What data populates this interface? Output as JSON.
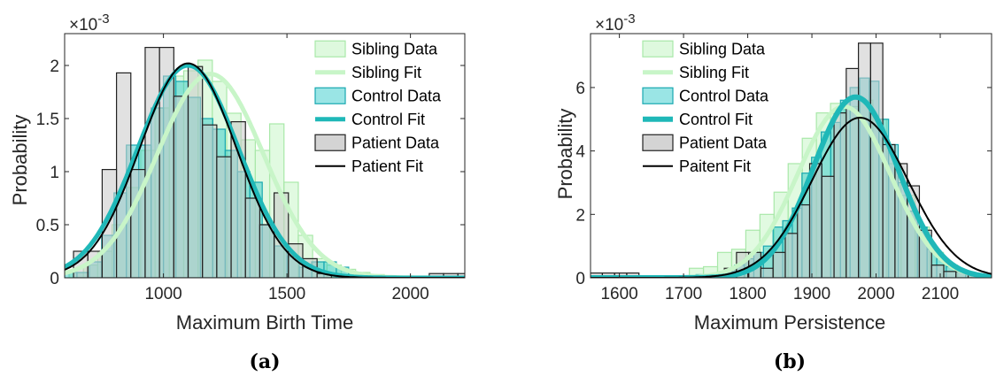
{
  "chart_data": [
    {
      "type": "bar",
      "panel_label": "(a)",
      "xlabel": "Maximum Birth Time",
      "ylabel": "Probability",
      "y_exponent_label": "×10",
      "y_exponent_power": "-3",
      "xlim": [
        600,
        2220
      ],
      "ylim": [
        0,
        2.3
      ],
      "xticks": [
        1000,
        1500,
        2000
      ],
      "yticks": [
        0,
        0.5,
        1,
        1.5,
        2
      ],
      "ytick_labels": [
        "0",
        "0.5",
        "1",
        "1.5",
        "2"
      ],
      "grid": false,
      "legend_position": "top-right",
      "legend": [
        "Sibling Data",
        "Sibling Fit",
        "Control Data",
        "Control Fit",
        "Patient Data",
        "Patient Fit"
      ],
      "histograms": [
        {
          "name": "Sibling Data",
          "color": "#c8f5c8",
          "edge": "#a9e8a9",
          "bin_width": 58,
          "centers": [
            647,
            705,
            763,
            821,
            879,
            937,
            995,
            1053,
            1111,
            1169,
            1227,
            1285,
            1343,
            1401,
            1459,
            1517,
            1575,
            1633,
            1691,
            1749,
            1807,
            1865,
            1923
          ],
          "values": [
            0.05,
            0.12,
            0.25,
            0.5,
            0.85,
            1.2,
            1.6,
            1.9,
            1.95,
            2.05,
            1.85,
            1.55,
            1.3,
            1.2,
            1.45,
            0.9,
            0.4,
            0.18,
            0.12,
            0.08,
            0.05,
            0.03,
            0.02
          ]
        },
        {
          "name": "Control Data",
          "color": "#1fc6c6",
          "edge": "#18a8b0",
          "bin_width": 50,
          "centers": [
            625,
            675,
            725,
            775,
            825,
            875,
            925,
            975,
            1025,
            1075,
            1125,
            1175,
            1225,
            1275,
            1325,
            1375,
            1425,
            1475,
            1525,
            1575,
            1625,
            1675,
            1725,
            1775
          ],
          "values": [
            0.05,
            0.05,
            0.15,
            0.4,
            0.8,
            1.25,
            1.25,
            1.6,
            1.9,
            1.85,
            1.7,
            1.5,
            1.4,
            1.2,
            1.0,
            0.9,
            0.5,
            0.3,
            0.2,
            0.1,
            0.15,
            0.15,
            0.1,
            0.05
          ]
        },
        {
          "name": "Patient Data",
          "color": "#c9c9c9",
          "edge": "#222222",
          "bin_width": 58,
          "centers": [
            665,
            723,
            781,
            839,
            897,
            955,
            1013,
            1071,
            1129,
            1187,
            1245,
            1303,
            1361,
            1419,
            1477,
            1535,
            1593,
            1651,
            2105,
            2163,
            2221
          ],
          "values": [
            0.25,
            0.25,
            1.02,
            1.93,
            1.02,
            2.17,
            2.17,
            1.71,
            1.99,
            1.44,
            1.14,
            1.47,
            0.75,
            0.5,
            0.8,
            0.32,
            0.18,
            0.04,
            0.04,
            0.04,
            0.04
          ]
        }
      ],
      "fits": [
        {
          "name": "Sibling Fit",
          "color": "#c8f5c8",
          "width": 5,
          "mean": 1190,
          "sd": 215,
          "peak": 1.92
        },
        {
          "name": "Control Fit",
          "color": "#1fb8b8",
          "width": 5,
          "mean": 1100,
          "sd": 205,
          "peak": 2.0
        },
        {
          "name": "Patient Fit",
          "color": "#000000",
          "width": 2,
          "mean": 1100,
          "sd": 195,
          "peak": 2.02
        }
      ]
    },
    {
      "type": "bar",
      "panel_label": "(b)",
      "xlabel": "Maximum Persistence",
      "ylabel": "Probability",
      "y_exponent_label": "×10",
      "y_exponent_power": "-3",
      "xlim": [
        1555,
        2180
      ],
      "ylim": [
        0,
        7.7
      ],
      "xticks": [
        1600,
        1700,
        1800,
        1900,
        2000,
        2100
      ],
      "yticks": [
        0,
        2,
        4,
        6
      ],
      "ytick_labels": [
        "0",
        "2",
        "4",
        "6"
      ],
      "grid": false,
      "legend_position": "top-left",
      "legend": [
        "Sibling Data",
        "Sibling Fit",
        "Control Data",
        "Control Fit",
        "Patient Data",
        "Paitent Fit"
      ],
      "histograms": [
        {
          "name": "Sibling Data",
          "color": "#c8f5c8",
          "edge": "#a9e8a9",
          "bin_width": 22,
          "centers": [
            1720,
            1742,
            1764,
            1786,
            1808,
            1830,
            1852,
            1874,
            1896,
            1918,
            1940,
            1962,
            1984,
            2006,
            2028,
            2050,
            2072,
            2094,
            2116,
            2138
          ],
          "values": [
            0.3,
            0.35,
            0.8,
            0.9,
            1.5,
            2.0,
            2.7,
            3.6,
            4.4,
            5.2,
            5.5,
            5.4,
            5.6,
            5.0,
            3.6,
            2.6,
            1.6,
            0.8,
            0.4,
            0.2
          ]
        },
        {
          "name": "Control Data",
          "color": "#1fc6c6",
          "edge": "#18a8b0",
          "bin_width": 15,
          "centers": [
            1727,
            1742,
            1757,
            1772,
            1787,
            1802,
            1817,
            1832,
            1847,
            1862,
            1877,
            1892,
            1907,
            1922,
            1937,
            1952,
            1967,
            1982,
            1997,
            2012,
            2027,
            2042,
            2057,
            2072,
            2087,
            2102,
            2117,
            2132,
            2147
          ],
          "values": [
            0.1,
            0.1,
            0.15,
            0.2,
            0.4,
            0.6,
            0.8,
            1.0,
            1.6,
            1.8,
            2.2,
            3.3,
            3.8,
            4.6,
            4.9,
            5.6,
            6.0,
            6.3,
            6.2,
            5.0,
            4.2,
            3.0,
            2.1,
            1.6,
            0.9,
            0.6,
            0.35,
            0.2,
            0.1
          ]
        },
        {
          "name": "Patient Data",
          "color": "#c9c9c9",
          "edge": "#222222",
          "bin_width": 19,
          "centers": [
            1564,
            1583,
            1602,
            1621,
            1640,
            1678,
            1697,
            1716,
            1735,
            1754,
            1773,
            1792,
            1811,
            1830,
            1849,
            1868,
            1887,
            1906,
            1925,
            1944,
            1963,
            1982,
            2001,
            2020,
            2039,
            2058,
            2077,
            2096,
            2115,
            2134,
            2153,
            2172
          ],
          "values": [
            0.15,
            0.15,
            0.15,
            0.15,
            0.05,
            0.05,
            0.05,
            0.05,
            0.05,
            0.05,
            0.3,
            0.8,
            0.8,
            0.3,
            0.8,
            1.4,
            2.3,
            3.6,
            3.2,
            5.2,
            6.6,
            7.4,
            7.4,
            4.2,
            3.6,
            2.9,
            1.5,
            0.4,
            0.2,
            0.2,
            0.1,
            0.05
          ]
        }
      ],
      "fits": [
        {
          "name": "Sibling Fit",
          "color": "#c8f5c8",
          "width": 5,
          "mean": 1950,
          "sd": 72,
          "peak": 5.4
        },
        {
          "name": "Control Fit",
          "color": "#1fb8b8",
          "width": 6,
          "mean": 1968,
          "sd": 66,
          "peak": 5.7
        },
        {
          "name": "Paitent Fit",
          "color": "#000000",
          "width": 2,
          "mean": 1975,
          "sd": 75,
          "peak": 5.05
        }
      ]
    }
  ]
}
